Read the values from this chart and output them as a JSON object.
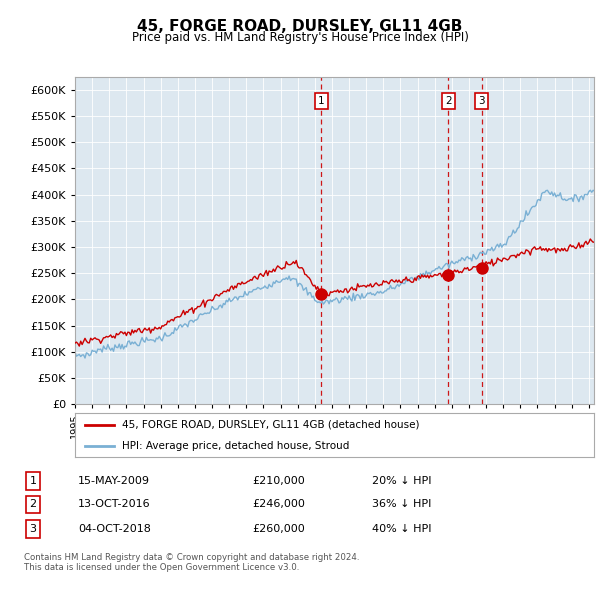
{
  "title": "45, FORGE ROAD, DURSLEY, GL11 4GB",
  "subtitle": "Price paid vs. HM Land Registry's House Price Index (HPI)",
  "yticks": [
    0,
    50000,
    100000,
    150000,
    200000,
    250000,
    300000,
    350000,
    400000,
    450000,
    500000,
    550000,
    600000
  ],
  "ylim": [
    0,
    625000
  ],
  "xlim_start": 1995.0,
  "xlim_end": 2025.3,
  "sale_color": "#cc0000",
  "hpi_color": "#7ab0d4",
  "vertical_line_color": "#cc0000",
  "chart_bg_color": "#dde8f0",
  "legend_label_sale": "45, FORGE ROAD, DURSLEY, GL11 4GB (detached house)",
  "legend_label_hpi": "HPI: Average price, detached house, Stroud",
  "transactions": [
    {
      "num": 1,
      "date": "15-MAY-2009",
      "price": 210000,
      "pct": "20%",
      "dir": "↓",
      "x_year": 2009.37
    },
    {
      "num": 2,
      "date": "13-OCT-2016",
      "price": 246000,
      "pct": "36%",
      "dir": "↓",
      "x_year": 2016.79
    },
    {
      "num": 3,
      "date": "04-OCT-2018",
      "price": 260000,
      "pct": "40%",
      "dir": "↓",
      "x_year": 2018.75
    }
  ],
  "footer_line1": "Contains HM Land Registry data © Crown copyright and database right 2024.",
  "footer_line2": "This data is licensed under the Open Government Licence v3.0.",
  "background_color": "#ffffff",
  "grid_color": "#ffffff"
}
